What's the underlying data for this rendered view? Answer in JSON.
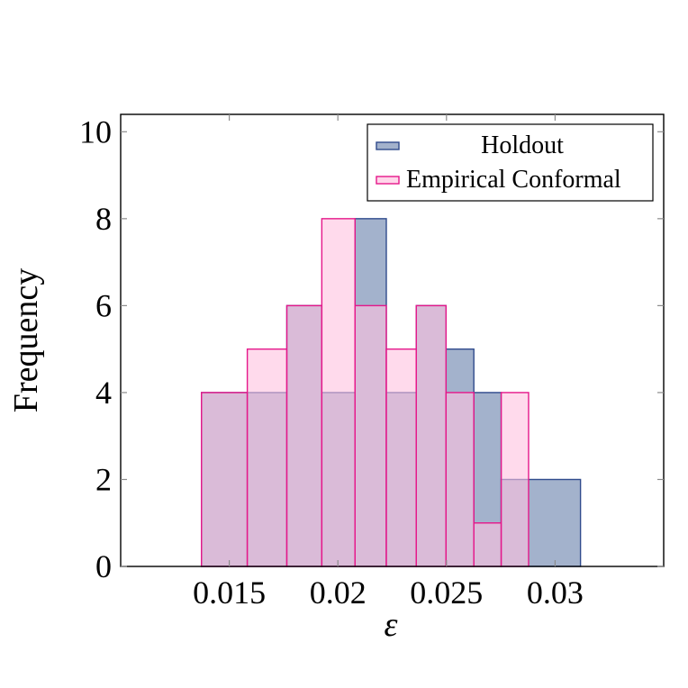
{
  "chart_data": {
    "type": "bar",
    "subtype": "overlaid-histogram",
    "title": "",
    "xlabel": "ε",
    "ylabel": "Frequency",
    "xlim": [
      0.01,
      0.035
    ],
    "ylim": [
      0,
      10.4
    ],
    "xticks": [
      0.015,
      0.02,
      0.025,
      0.03
    ],
    "xtick_labels": [
      "0.015",
      "0.02",
      "0.025",
      "0.03"
    ],
    "yticks": [
      0,
      2,
      4,
      6,
      8,
      10
    ],
    "ytick_labels": [
      "0",
      "2",
      "4",
      "6",
      "8",
      "10"
    ],
    "grid": false,
    "legend_position": "upper right",
    "series": [
      {
        "name": "Holdout",
        "fill": "#a3b2cc",
        "stroke": "#2f4a8c",
        "fill_opacity": 1,
        "bin_edges": [
          0.01372,
          0.01583,
          0.01765,
          0.01926,
          0.02079,
          0.02223,
          0.02361,
          0.02498,
          0.02626,
          0.02752,
          0.03117
        ],
        "values": [
          4,
          4,
          6,
          4,
          8,
          4,
          6,
          5,
          4,
          2
        ]
      },
      {
        "name": "Empirical Conformal",
        "fill": "#ffc2e0",
        "stroke": "#e5178a",
        "fill_opacity": 0.6,
        "bin_edges": [
          0.01372,
          0.01583,
          0.01765,
          0.01926,
          0.02079,
          0.02223,
          0.02361,
          0.02498,
          0.02626,
          0.02752,
          0.02878
        ],
        "values": [
          4,
          5,
          6,
          8,
          6,
          5,
          6,
          4,
          1,
          4
        ]
      }
    ],
    "overlap_color": "#b399c3"
  },
  "legend": {
    "items": [
      {
        "label": "Holdout",
        "fill": "#a3b2cc",
        "stroke": "#2f4a8c"
      },
      {
        "label": "Empirical Conformal",
        "fill": "#ffd6ea",
        "stroke": "#e5178a"
      }
    ]
  },
  "axes": {
    "x_label": "ε",
    "y_label": "Frequency"
  }
}
